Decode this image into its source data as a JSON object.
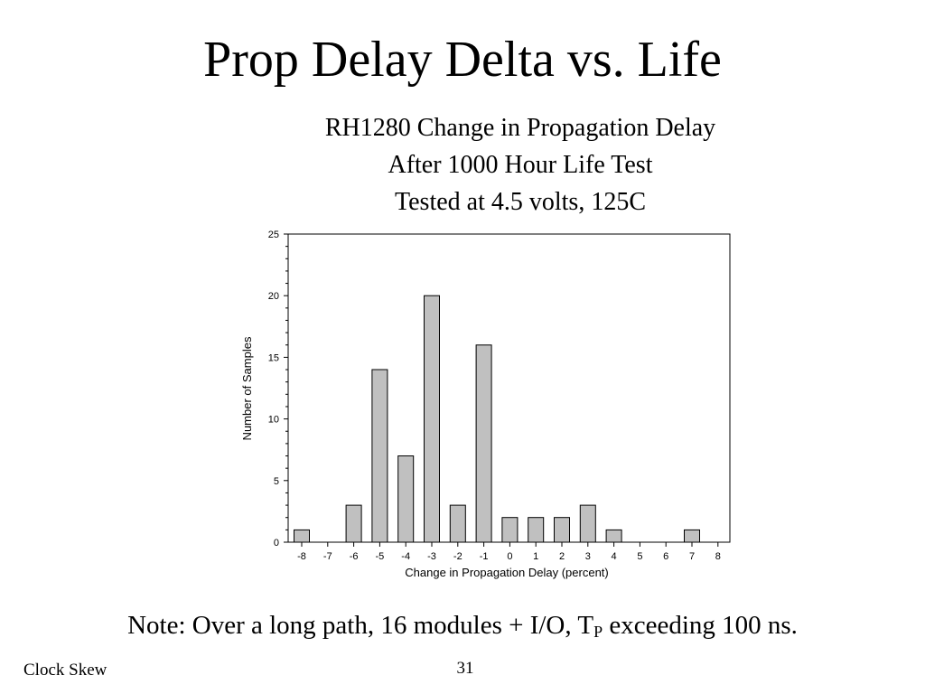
{
  "slide": {
    "title": "Prop Delay Delta vs. Life",
    "note_prefix": "Note: Over a long path, 16 modules + I/O, T",
    "note_sub": "P",
    "note_suffix": " exceeding 100 ns.",
    "footer_left": "Clock Skew",
    "page_number": "31"
  },
  "chart_data": {
    "type": "bar",
    "title_lines": [
      "RH1280 Change in Propagation Delay",
      "After 1000 Hour Life Test",
      "Tested at 4.5 volts, 125C"
    ],
    "xlabel": "Change in Propagation Delay (percent)",
    "ylabel": "Number of Samples",
    "categories": [
      "-8",
      "-7",
      "-6",
      "-5",
      "-4",
      "-3",
      "-2",
      "-1",
      "0",
      "1",
      "2",
      "3",
      "4",
      "5",
      "6",
      "7",
      "8"
    ],
    "values": [
      1,
      0,
      3,
      14,
      7,
      20,
      3,
      16,
      2,
      2,
      2,
      3,
      1,
      0,
      0,
      1,
      0
    ],
    "ylim": [
      0,
      25
    ],
    "yticks": [
      0,
      5,
      10,
      15,
      20,
      25
    ],
    "bar_color": "#c0c0c0",
    "bar_edge_color": "#000000",
    "grid": false,
    "legend": "none"
  }
}
